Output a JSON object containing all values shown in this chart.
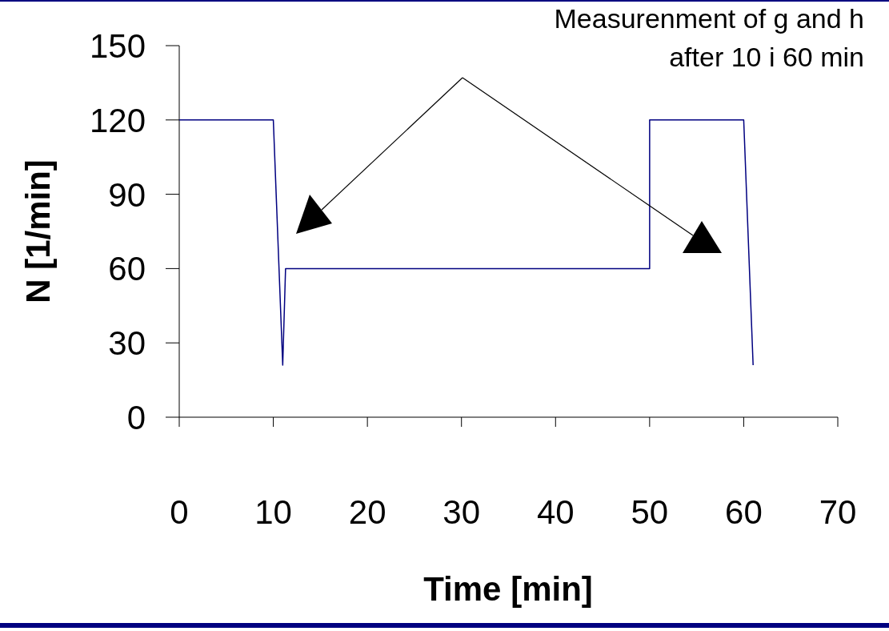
{
  "chart_data": {
    "type": "line",
    "xlabel": "Time [min]",
    "ylabel": "N [1/min]",
    "x": [
      0,
      10,
      11,
      11.3,
      50,
      50,
      60,
      61
    ],
    "series": [
      {
        "color": "#000080",
        "values": [
          120,
          120,
          21,
          60,
          60,
          120,
          120,
          21
        ]
      }
    ],
    "xlim": [
      0,
      70
    ],
    "xticks": [
      0,
      10,
      20,
      30,
      40,
      50,
      60,
      70
    ],
    "ylim": [
      0,
      150
    ],
    "yticks": [
      0,
      30,
      60,
      90,
      120,
      150
    ],
    "annotations": [
      "Measurenment of g and h",
      "after 10 i 60 min"
    ]
  }
}
